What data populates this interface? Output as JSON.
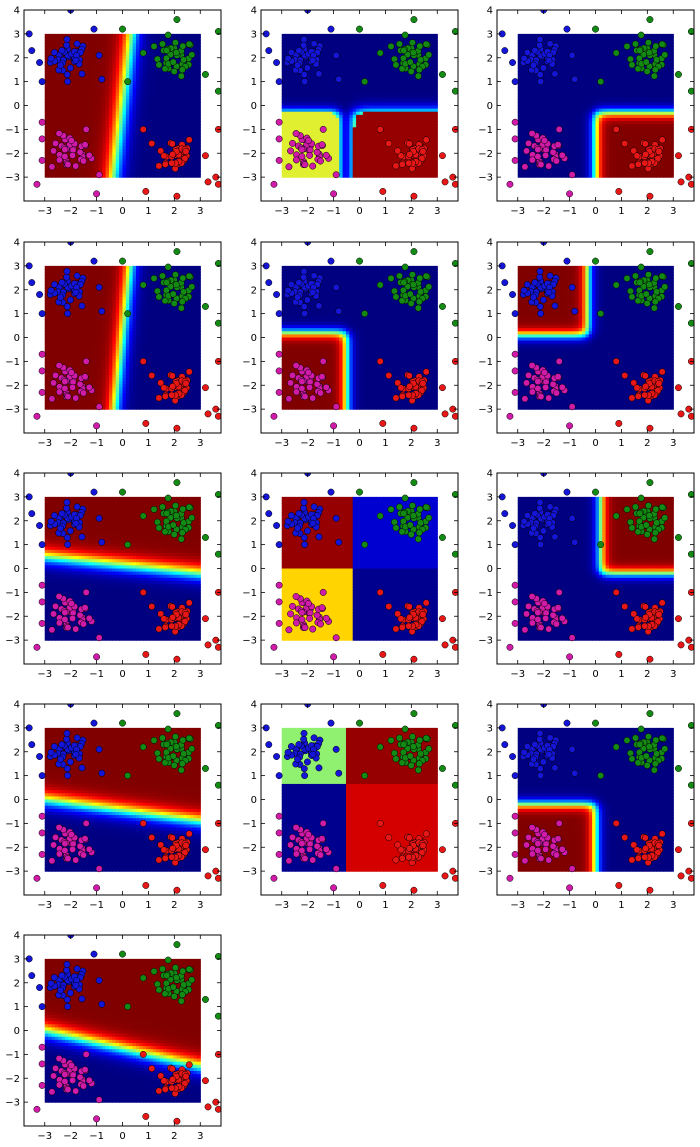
{
  "figure": {
    "panel_count": 13,
    "layout": "5 rows x 3 columns (last row has one panel)"
  },
  "chart_data": {
    "type": "scatter",
    "description_free": true,
    "shared": {
      "xlim": [
        -3.8,
        3.8
      ],
      "ylim": [
        -4.0,
        4.0
      ],
      "xticks": [
        -3,
        -2,
        -1,
        0,
        1,
        2,
        3
      ],
      "yticks": [
        -3,
        -2,
        -1,
        0,
        1,
        2,
        3,
        4
      ],
      "heatmap_extent": {
        "x": [
          -3,
          3
        ],
        "y": [
          -3,
          3
        ]
      },
      "colormap": "jet",
      "grid": false,
      "clusters": [
        {
          "color": "#1515d8",
          "center": [
            -2.0,
            2.0
          ]
        },
        {
          "color": "#138a13",
          "center": [
            2.0,
            2.0
          ]
        },
        {
          "color": "#d01aa8",
          "center": [
            -2.0,
            -2.0
          ]
        },
        {
          "color": "#e81717",
          "center": [
            2.0,
            -2.0
          ]
        }
      ],
      "outlier_points": [
        {
          "color": "#1515d8",
          "x": -3.6,
          "y": 3.0
        },
        {
          "color": "#1515d8",
          "x": -3.5,
          "y": 2.3
        },
        {
          "color": "#1515d8",
          "x": -3.2,
          "y": 1.8
        },
        {
          "color": "#1515d8",
          "x": -3.1,
          "y": 1.0
        },
        {
          "color": "#1515d8",
          "x": -2.0,
          "y": 4.0
        },
        {
          "color": "#1515d8",
          "x": -1.1,
          "y": 3.2
        },
        {
          "color": "#1515d8",
          "x": -0.8,
          "y": 1.1
        },
        {
          "color": "#1515d8",
          "x": -0.9,
          "y": 2.1
        },
        {
          "color": "#138a13",
          "x": 0.0,
          "y": 3.2
        },
        {
          "color": "#138a13",
          "x": 2.1,
          "y": 3.6
        },
        {
          "color": "#138a13",
          "x": 3.7,
          "y": 3.1
        },
        {
          "color": "#138a13",
          "x": 0.2,
          "y": 1.0
        },
        {
          "color": "#138a13",
          "x": 0.8,
          "y": 2.2
        },
        {
          "color": "#138a13",
          "x": 3.2,
          "y": 1.3
        },
        {
          "color": "#138a13",
          "x": 3.7,
          "y": 0.6
        },
        {
          "color": "#d01aa8",
          "x": -3.3,
          "y": -3.3
        },
        {
          "color": "#d01aa8",
          "x": -3.1,
          "y": -2.3
        },
        {
          "color": "#d01aa8",
          "x": -3.1,
          "y": -1.4
        },
        {
          "color": "#d01aa8",
          "x": -3.1,
          "y": -0.7
        },
        {
          "color": "#d01aa8",
          "x": -1.0,
          "y": -3.7
        },
        {
          "color": "#d01aa8",
          "x": -1.4,
          "y": -1.0
        },
        {
          "color": "#d01aa8",
          "x": -0.9,
          "y": -2.9
        },
        {
          "color": "#e81717",
          "x": 0.9,
          "y": -3.6
        },
        {
          "color": "#e81717",
          "x": 2.1,
          "y": -3.8
        },
        {
          "color": "#e81717",
          "x": 3.3,
          "y": -3.2
        },
        {
          "color": "#e81717",
          "x": 3.6,
          "y": -3.0
        },
        {
          "color": "#e81717",
          "x": 3.7,
          "y": -3.3
        },
        {
          "color": "#e81717",
          "x": 3.2,
          "y": -2.1
        },
        {
          "color": "#e81717",
          "x": 3.7,
          "y": -1.0
        },
        {
          "color": "#e81717",
          "x": 0.8,
          "y": -1.0
        }
      ]
    },
    "panels": [
      {
        "kind": "line",
        "line": [
          [
            0.35,
            3.0
          ],
          [
            -0.35,
            -3.0
          ]
        ],
        "high_side": "right",
        "width": 0.55
      },
      {
        "kind": "corner_hi",
        "corner": "bottom_left",
        "cx": -0.8,
        "cy": -0.3,
        "peak_color": "#e0f030",
        "rest_color": "#960000",
        "rest_region": "bottom_right"
      },
      {
        "kind": "corner",
        "corner": "bottom_right",
        "cx": 0.0,
        "cy": -0.3
      },
      {
        "kind": "line",
        "line": [
          [
            0.3,
            3.0
          ],
          [
            -0.3,
            -3.0
          ]
        ],
        "high_side": "right",
        "width": 0.45
      },
      {
        "kind": "corner",
        "corner": "bottom_left",
        "cx": -0.5,
        "cy": 0.2
      },
      {
        "kind": "corner",
        "corner": "top_left",
        "cx": -0.3,
        "cy": 0.1
      },
      {
        "kind": "line",
        "line": [
          [
            -3.0,
            0.5
          ],
          [
            3.0,
            -0.2
          ]
        ],
        "high_side": "up",
        "width": 0.55
      },
      {
        "kind": "split",
        "vx": -0.3,
        "hy": 0.0,
        "tl": "#960000",
        "bl": "#ffd400",
        "tr": "#0000d0",
        "br": "#00008f"
      },
      {
        "kind": "corner",
        "corner": "top_right",
        "cx": 0.2,
        "cy": -0.2
      },
      {
        "kind": "line",
        "line": [
          [
            -3.0,
            0.0
          ],
          [
            3.0,
            -0.9
          ]
        ],
        "high_side": "up",
        "width": 0.55
      },
      {
        "kind": "split",
        "vx": -0.5,
        "hy": 0.7,
        "tl": "#90f070",
        "bl": "#00008f",
        "tr": "#960000",
        "br": "#d40000"
      },
      {
        "kind": "corner",
        "corner": "bottom_left",
        "cx": 0.0,
        "cy": -0.2
      },
      {
        "kind": "line",
        "line": [
          [
            -3.0,
            0.0
          ],
          [
            3.0,
            -1.5
          ]
        ],
        "high_side": "up",
        "width": 0.55
      }
    ]
  }
}
